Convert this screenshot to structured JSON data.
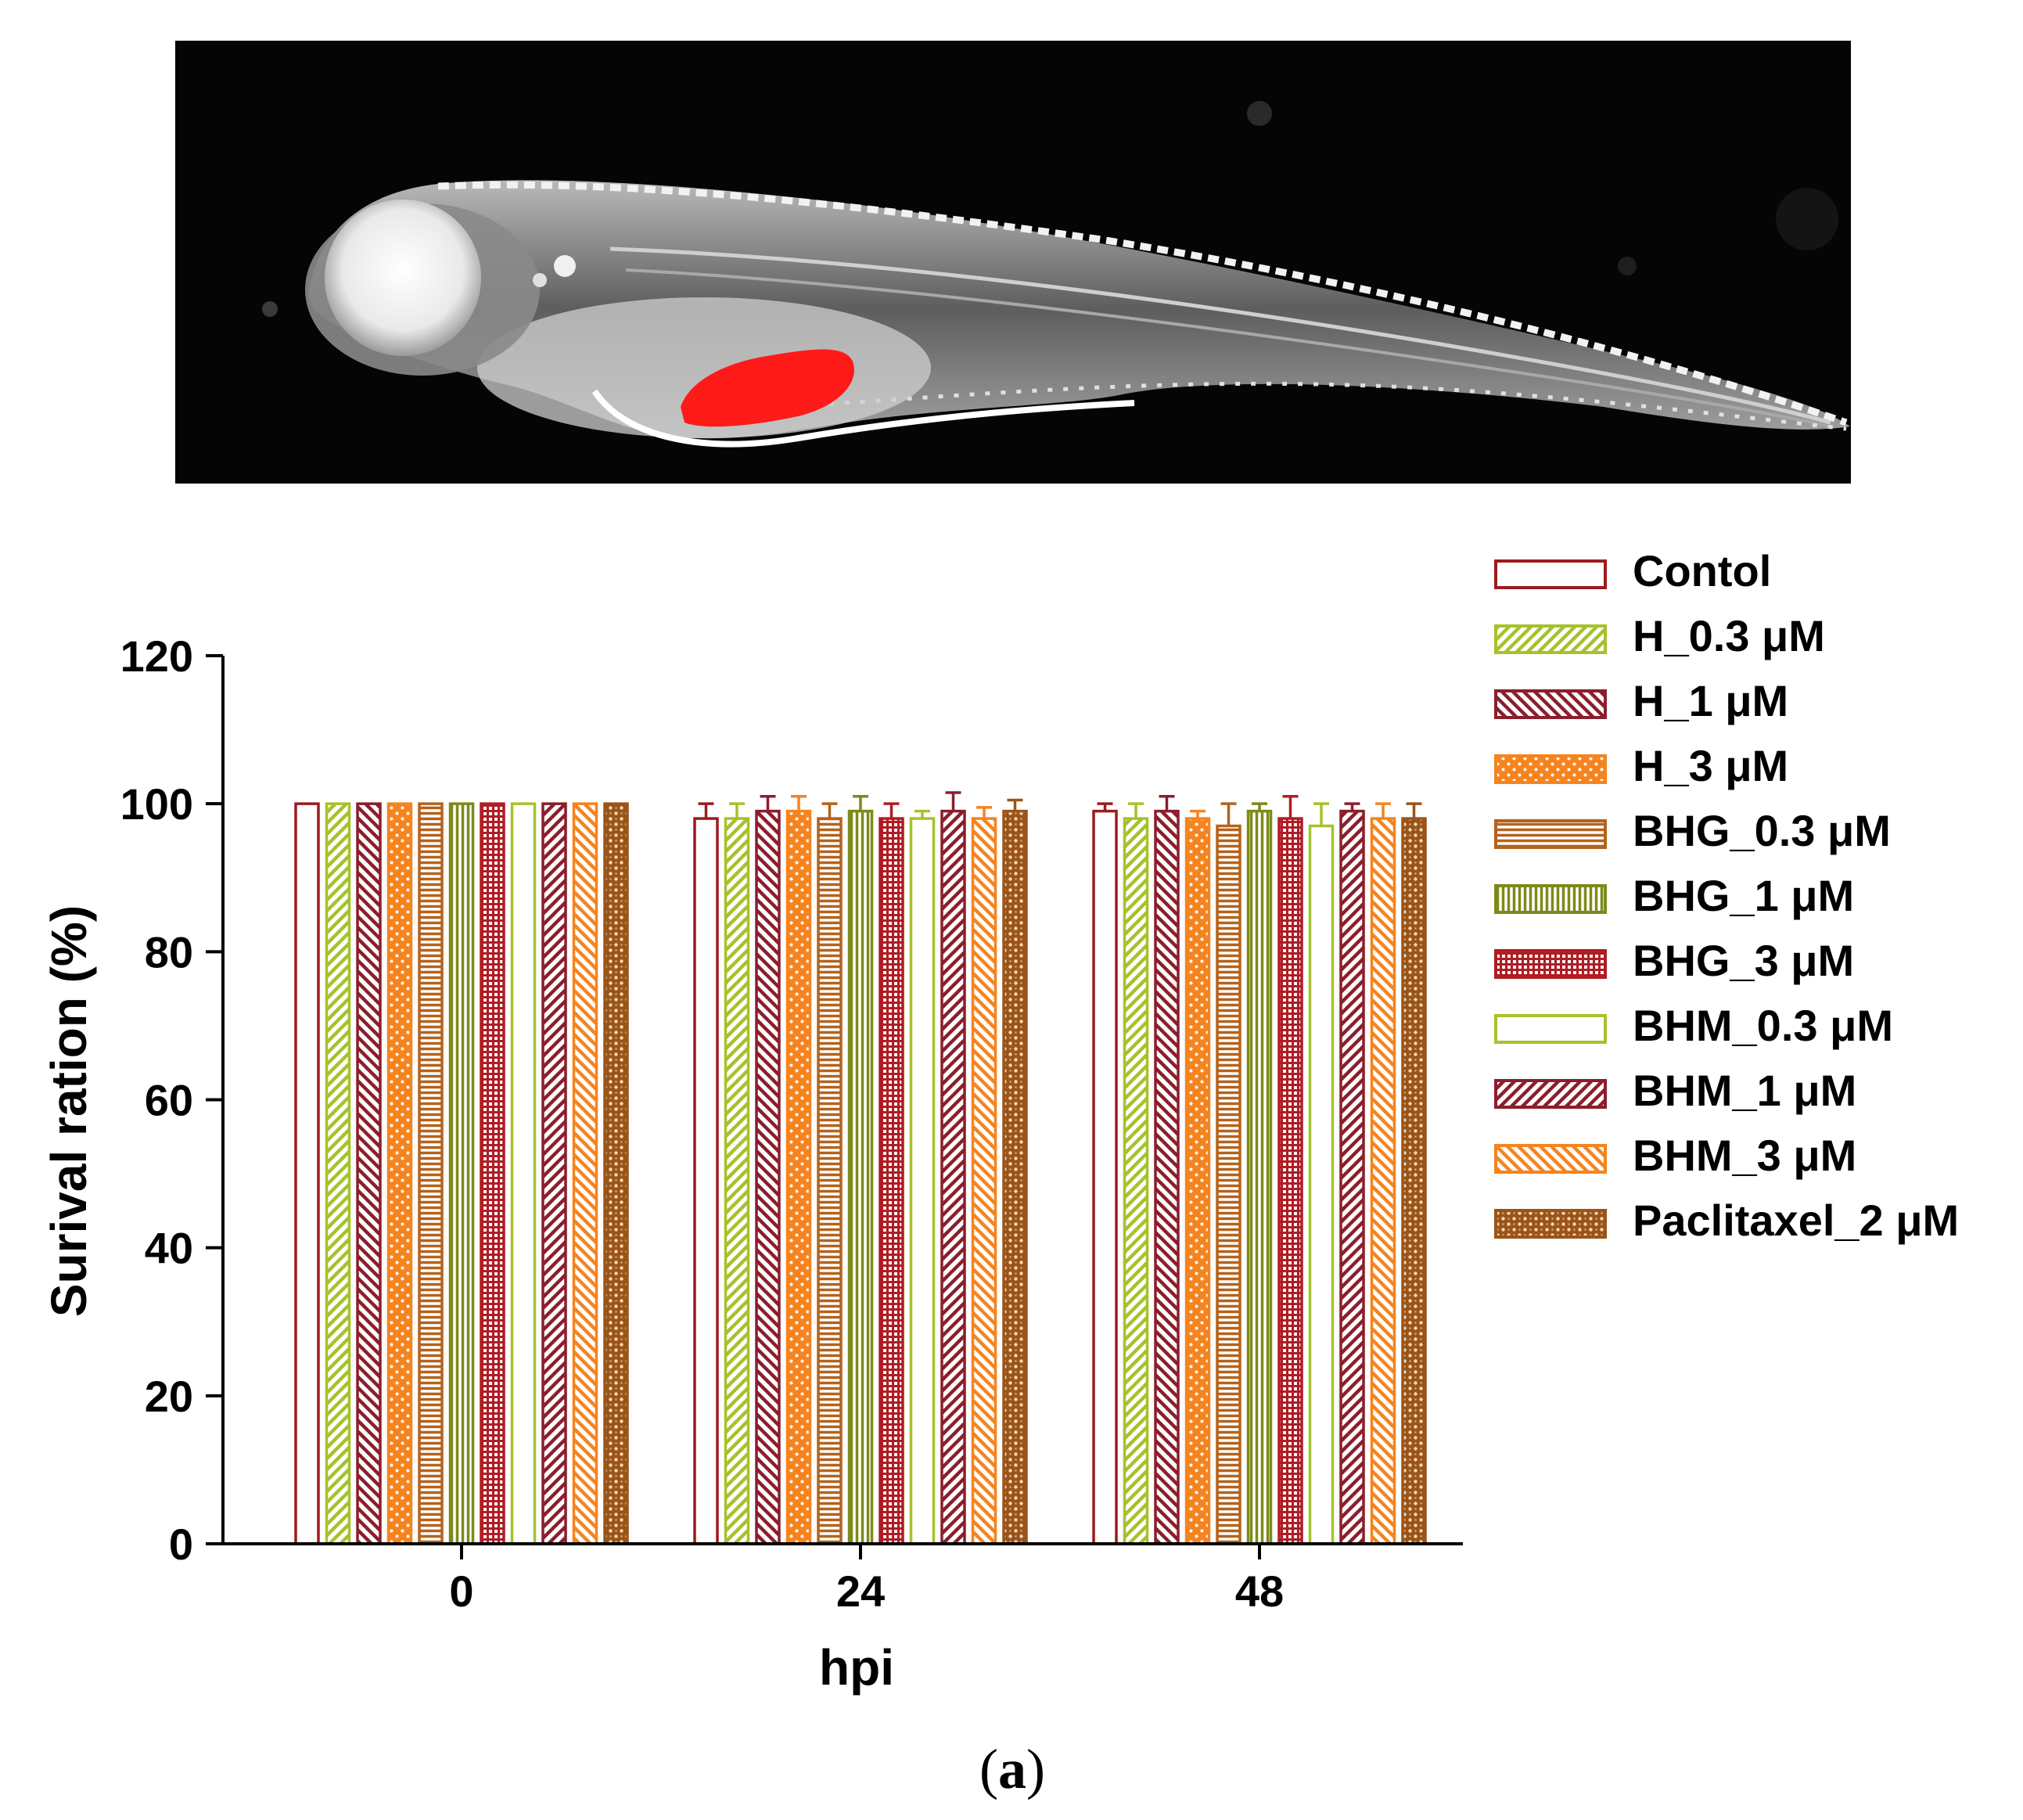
{
  "panel_label": "(a)",
  "panel_label_parts": {
    "open": "(",
    "letter": "a",
    "close": ")"
  },
  "image": {
    "description_icon": "zebrafish-larva-fluorescence-icon",
    "highlight_color": "#ff1a1a"
  },
  "chart_data": {
    "type": "bar",
    "title": "",
    "xlabel": "hpi",
    "ylabel": "Surival ration (%)",
    "ylim": [
      0,
      120
    ],
    "yticks": [
      0,
      20,
      40,
      60,
      80,
      100,
      120
    ],
    "categories": [
      "0",
      "24",
      "48"
    ],
    "legend_position": "top-right",
    "series": [
      {
        "name": "Contol",
        "color": "#9b1b1f",
        "pattern": "none",
        "values": [
          100,
          98,
          99
        ],
        "errors": [
          0,
          2,
          1
        ]
      },
      {
        "name": "H_0.3 μM",
        "color": "#a6c22b",
        "pattern": "diag-fwd",
        "values": [
          100,
          98,
          98
        ],
        "errors": [
          0,
          2,
          2
        ]
      },
      {
        "name": "H_1 μM",
        "color": "#8b1e2c",
        "pattern": "diag-back",
        "values": [
          100,
          99,
          99
        ],
        "errors": [
          0,
          2,
          2
        ]
      },
      {
        "name": "H_3 μM",
        "color": "#f5841f",
        "pattern": "dots",
        "values": [
          100,
          99,
          98
        ],
        "errors": [
          0,
          2,
          1
        ]
      },
      {
        "name": "BHG_0.3 μM",
        "color": "#b5621b",
        "pattern": "horizontal",
        "values": [
          100,
          98,
          97
        ],
        "errors": [
          0,
          2,
          3
        ]
      },
      {
        "name": "BHG_1 μM",
        "color": "#7d8a1a",
        "pattern": "vertical",
        "values": [
          100,
          99,
          99
        ],
        "errors": [
          0,
          2,
          1
        ]
      },
      {
        "name": "BHG_3 μM",
        "color": "#b01c24",
        "pattern": "grid",
        "values": [
          100,
          98,
          98
        ],
        "errors": [
          0,
          2,
          3
        ]
      },
      {
        "name": "BHM_0.3 μM",
        "color": "#a6c22b",
        "pattern": "none",
        "values": [
          100,
          98,
          97
        ],
        "errors": [
          0,
          1,
          3
        ]
      },
      {
        "name": "BHM_1 μM",
        "color": "#8b1e2c",
        "pattern": "diag-fwd",
        "values": [
          100,
          99,
          99
        ],
        "errors": [
          0,
          2.5,
          1
        ]
      },
      {
        "name": "BHM_3 μM",
        "color": "#f5841f",
        "pattern": "diag-back",
        "values": [
          100,
          98,
          98
        ],
        "errors": [
          0,
          1.5,
          2
        ]
      },
      {
        "name": "Paclitaxel_2 μM",
        "color": "#9a5418",
        "pattern": "dots-dense",
        "values": [
          100,
          99,
          98
        ],
        "errors": [
          0,
          1.5,
          2
        ]
      }
    ]
  }
}
